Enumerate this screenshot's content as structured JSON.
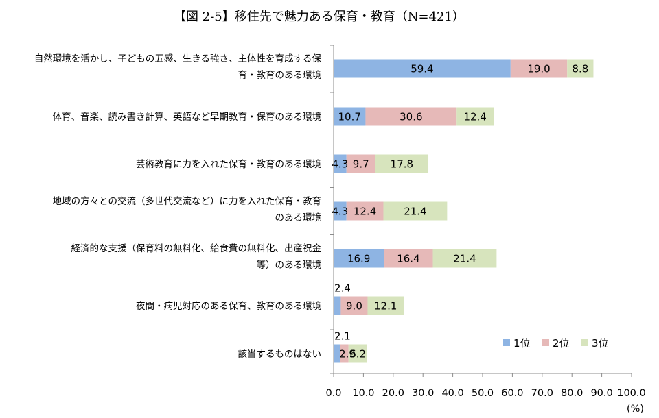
{
  "chart_data": {
    "type": "bar",
    "orientation": "horizontal",
    "stacked": true,
    "title": "【図 2-5】移住先で魅力ある保育・教育（N=421）",
    "xlabel": "",
    "ylabel": "",
    "unit_label": "(%)",
    "xlim": [
      0,
      100
    ],
    "x_ticks": [
      "0.0",
      "10.0",
      "20.0",
      "30.0",
      "40.0",
      "50.0",
      "60.0",
      "70.0",
      "80.0",
      "90.0",
      "100.0"
    ],
    "categories": [
      [
        "自然環境を活かし、子どもの五感、生きる強さ、主体性を育成する保",
        "育・教育のある環境"
      ],
      [
        "体育、音楽、読み書き計算、英語など早期教育・保育のある環境"
      ],
      [
        "芸術教育に力を入れた保育・教育のある環境"
      ],
      [
        "地域の方々との交流（多世代交流など）に力を入れた保育・教育",
        "のある環境"
      ],
      [
        "経済的な支援（保育料の無料化、給食費の無料化、出産祝金",
        "等）のある環境"
      ],
      [
        "夜間・病児対応のある保育、教育のある環境"
      ],
      [
        "該当するものはない"
      ]
    ],
    "series": [
      {
        "name": "1位",
        "color": "#8eb4e3",
        "values": [
          59.4,
          10.7,
          4.3,
          4.3,
          16.9,
          2.4,
          2.1
        ]
      },
      {
        "name": "2位",
        "color": "#e6b9b8",
        "values": [
          19.0,
          30.6,
          9.7,
          12.4,
          16.4,
          9.0,
          2.9
        ]
      },
      {
        "name": "3位",
        "color": "#d7e4bd",
        "values": [
          8.8,
          12.4,
          17.8,
          21.4,
          21.4,
          12.1,
          6.2
        ]
      }
    ],
    "value_labels": [
      [
        "59.4",
        "19.0",
        "8.8"
      ],
      [
        "10.7",
        "30.6",
        "12.4"
      ],
      [
        "4.3",
        "9.7",
        "17.8"
      ],
      [
        "4.3",
        "12.4",
        "21.4"
      ],
      [
        "16.9",
        "16.4",
        "21.4"
      ],
      [
        "2.4",
        "9.0",
        "12.1"
      ],
      [
        "2.1",
        "2.9",
        "6.2"
      ]
    ],
    "legend_position": "bottom-right",
    "grid": false
  }
}
